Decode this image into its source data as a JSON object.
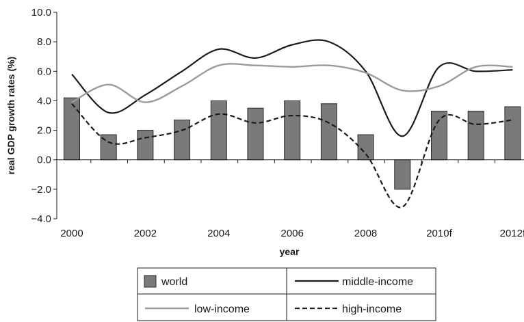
{
  "chart_data": {
    "type": "bar",
    "title": "",
    "xlabel": "year",
    "ylabel": "real GDP growth rates (%)",
    "ylim": [
      -4.0,
      10.0
    ],
    "yticks": [
      "10.0",
      "8.0",
      "6.0",
      "4.0",
      "2.0",
      "0.0",
      "−2.0",
      "−4.0"
    ],
    "ytick_values": [
      10,
      8,
      6,
      4,
      2,
      0,
      -2,
      -4
    ],
    "categories": [
      "2000",
      "2001",
      "2002",
      "2003",
      "2004",
      "2005",
      "2006",
      "2007",
      "2008",
      "2009",
      "2010f",
      "2011f",
      "2012f"
    ],
    "xtick_labels": [
      "2000",
      "2002",
      "2004",
      "2006",
      "2008",
      "2010f",
      "2012f"
    ],
    "grid": false,
    "legend_position": "bottom",
    "colors": {
      "bar_fill": "#7a7a7a",
      "bar_stroke": "#2a2a2a",
      "middle_income": "#1a1a1a",
      "low_income": "#9a9a9a",
      "high_income": "#1a1a1a"
    },
    "series": [
      {
        "name": "world",
        "kind": "bar",
        "values": [
          4.2,
          1.7,
          2.0,
          2.7,
          4.0,
          3.5,
          4.0,
          3.8,
          1.7,
          -2.0,
          3.3,
          3.3,
          3.6
        ]
      },
      {
        "name": "middle-income",
        "kind": "line",
        "style": "solid",
        "values": [
          5.8,
          3.2,
          4.4,
          6.0,
          7.5,
          6.9,
          7.8,
          8.0,
          6.0,
          1.6,
          6.3,
          6.0,
          6.1
        ]
      },
      {
        "name": "low-income",
        "kind": "line",
        "style": "solid-light",
        "values": [
          3.9,
          5.1,
          3.9,
          5.0,
          6.4,
          6.4,
          6.3,
          6.4,
          5.9,
          4.7,
          5.0,
          6.3,
          6.3
        ]
      },
      {
        "name": "high-income",
        "kind": "line",
        "style": "dashed",
        "values": [
          3.8,
          1.2,
          1.5,
          2.0,
          3.1,
          2.5,
          3.0,
          2.5,
          0.4,
          -3.2,
          2.7,
          2.4,
          2.7
        ]
      }
    ],
    "legend": [
      "world",
      "middle-income",
      "low-income",
      "high-income"
    ]
  }
}
